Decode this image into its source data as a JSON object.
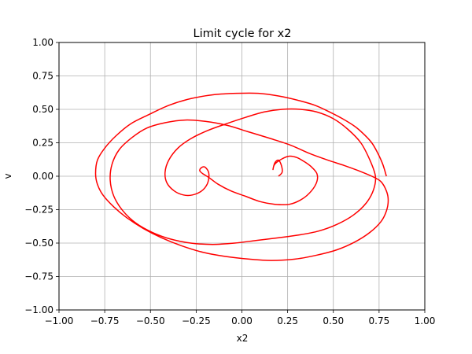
{
  "chart_data": {
    "type": "line",
    "title": "Limit cycle for x2",
    "xlabel": "x2",
    "ylabel": "v",
    "xlim": [
      -1.0,
      1.0
    ],
    "ylim": [
      -1.0,
      1.0
    ],
    "x_ticks": [
      -1.0,
      -0.75,
      -0.5,
      -0.25,
      0.0,
      0.25,
      0.5,
      0.75,
      1.0
    ],
    "y_ticks": [
      -1.0,
      -0.75,
      -0.5,
      -0.25,
      0.0,
      0.25,
      0.5,
      0.75,
      1.0
    ],
    "x_tick_labels": [
      "−1.00",
      "−0.75",
      "−0.50",
      "−0.25",
      "0.00",
      "0.25",
      "0.50",
      "0.75",
      "1.00"
    ],
    "y_tick_labels": [
      "−1.00",
      "−0.75",
      "−0.50",
      "−0.25",
      "0.00",
      "0.25",
      "0.50",
      "0.75",
      "1.00"
    ],
    "grid": true,
    "color": "#ff0000",
    "series": [
      {
        "x": [
          0.2,
          0.22,
          0.216,
          0.2,
          0.18,
          0.17,
          0.18,
          0.22,
          0.26,
          0.3,
          0.34,
          0.38,
          0.41,
          0.41,
          0.38,
          0.33,
          0.26,
          0.18,
          0.1,
          0.02,
          -0.06,
          -0.13,
          -0.18,
          -0.215,
          -0.23,
          -0.225,
          -0.205,
          -0.185,
          -0.18,
          -0.19,
          -0.22,
          -0.27,
          -0.32,
          -0.37,
          -0.41,
          -0.42,
          -0.4,
          -0.35,
          -0.28,
          -0.19,
          -0.09,
          0.02,
          0.12,
          0.22,
          0.32,
          0.41,
          0.5,
          0.58,
          0.65,
          0.7,
          0.73,
          0.72,
          0.68,
          0.61,
          0.52,
          0.42,
          0.31,
          0.2,
          0.08,
          -0.04,
          -0.16,
          -0.28,
          -0.39,
          -0.49,
          -0.58,
          -0.65,
          -0.7,
          -0.72,
          -0.71,
          -0.67,
          -0.6,
          -0.52,
          -0.42,
          -0.31,
          -0.2,
          -0.08,
          0.04,
          0.16,
          0.27,
          0.37,
          0.47,
          0.56,
          0.64,
          0.71,
          0.76,
          0.79,
          0.8,
          0.79,
          0.76,
          0.7,
          0.62,
          0.52,
          0.41,
          0.29,
          0.16,
          0.04,
          -0.09,
          -0.21,
          -0.33,
          -0.44,
          -0.54,
          -0.63,
          -0.7,
          -0.76,
          -0.79,
          -0.8,
          -0.79,
          -0.75,
          -0.69,
          -0.61,
          -0.51,
          -0.4,
          -0.28,
          -0.15,
          -0.03,
          0.09,
          0.2,
          0.3,
          0.4,
          0.48,
          0.55,
          0.62,
          0.67,
          0.71,
          0.74,
          0.77,
          0.79
        ],
        "y": [
          0.0,
          0.03,
          0.08,
          0.12,
          0.1,
          0.05,
          0.09,
          0.13,
          0.15,
          0.14,
          0.11,
          0.07,
          0.02,
          -0.04,
          -0.11,
          -0.17,
          -0.21,
          -0.21,
          -0.19,
          -0.15,
          -0.11,
          -0.06,
          -0.01,
          0.02,
          0.04,
          0.06,
          0.07,
          0.04,
          0.0,
          -0.06,
          -0.11,
          -0.14,
          -0.14,
          -0.11,
          -0.05,
          0.03,
          0.12,
          0.21,
          0.28,
          0.34,
          0.39,
          0.44,
          0.48,
          0.5,
          0.5,
          0.48,
          0.43,
          0.35,
          0.25,
          0.12,
          0.0,
          -0.1,
          -0.2,
          -0.29,
          -0.36,
          -0.41,
          -0.44,
          -0.46,
          -0.48,
          -0.5,
          -0.51,
          -0.5,
          -0.47,
          -0.42,
          -0.35,
          -0.26,
          -0.15,
          -0.03,
          0.09,
          0.2,
          0.29,
          0.36,
          0.4,
          0.42,
          0.41,
          0.38,
          0.33,
          0.28,
          0.23,
          0.17,
          0.12,
          0.08,
          0.04,
          0.0,
          -0.04,
          -0.11,
          -0.18,
          -0.26,
          -0.34,
          -0.42,
          -0.49,
          -0.55,
          -0.59,
          -0.62,
          -0.63,
          -0.62,
          -0.6,
          -0.57,
          -0.52,
          -0.46,
          -0.39,
          -0.31,
          -0.23,
          -0.14,
          -0.06,
          0.02,
          0.12,
          0.21,
          0.3,
          0.39,
          0.46,
          0.53,
          0.58,
          0.61,
          0.62,
          0.62,
          0.6,
          0.57,
          0.53,
          0.48,
          0.43,
          0.37,
          0.31,
          0.25,
          0.18,
          0.09,
          0.0
        ]
      }
    ]
  }
}
